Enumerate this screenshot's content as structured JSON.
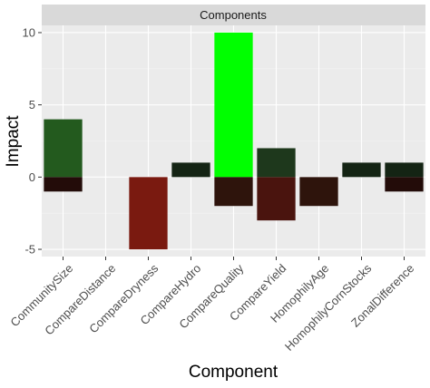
{
  "chart_data": {
    "type": "bar",
    "facet_label": "Components",
    "xlabel": "Component",
    "ylabel": "Impact",
    "ylim": [
      -5.5,
      10.5
    ],
    "yticks": [
      -5,
      0,
      5,
      10
    ],
    "grid": true,
    "legend": "none",
    "categories": [
      "CommunitySize",
      "CompareDistance",
      "CompareDryness",
      "CompareHydro",
      "CompareQuality",
      "CompareYield",
      "HomophilyAge",
      "HomophilyCornStocks",
      "ZonalDifference"
    ],
    "series": [
      {
        "values": [
          4,
          0,
          0,
          1,
          10,
          2,
          0,
          1,
          1
        ],
        "colors": [
          "#235a1e",
          null,
          null,
          "#142414",
          "#00ff00",
          "#1e381c",
          null,
          "#142414",
          "#142414"
        ]
      },
      {
        "values": [
          -1,
          0,
          -5,
          0,
          -2,
          -3,
          -2,
          0,
          -1
        ],
        "colors": [
          "#230c09",
          null,
          "#7a1a10",
          null,
          "#2e140c",
          "#4a140e",
          "#2e140c",
          null,
          "#230c09"
        ]
      }
    ]
  }
}
